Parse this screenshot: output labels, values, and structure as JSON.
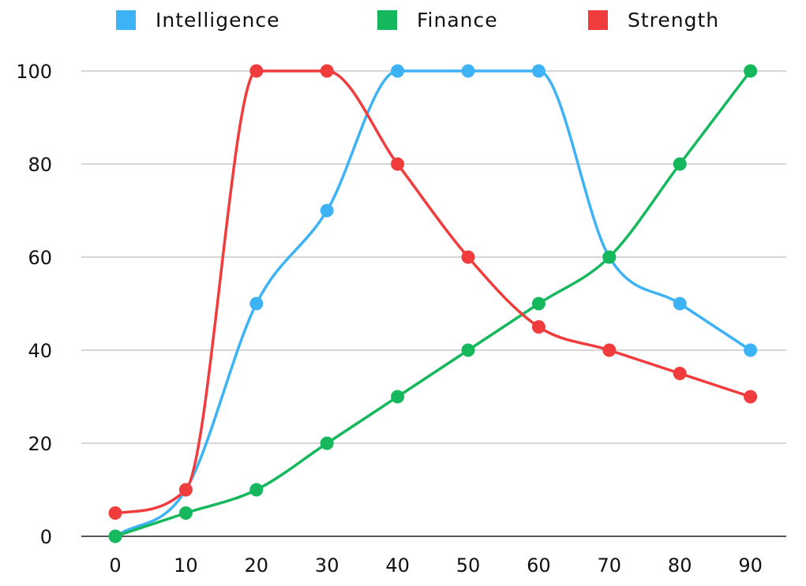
{
  "chart_data": {
    "type": "line",
    "title": "",
    "xlabel": "",
    "ylabel": "",
    "x": [
      0,
      10,
      20,
      30,
      40,
      50,
      60,
      70,
      80,
      90
    ],
    "x_tick_labels": [
      "0",
      "10",
      "20",
      "30",
      "40",
      "50",
      "60",
      "70",
      "80",
      "90"
    ],
    "y_tick_labels": [
      "0",
      "20",
      "40",
      "60",
      "80",
      "100"
    ],
    "ylim": [
      0,
      100
    ],
    "grid": true,
    "smooth": true,
    "legend_position": "top",
    "series": [
      {
        "name": "Intelligence",
        "color": "#3db3f5",
        "values": [
          0,
          10,
          50,
          70,
          100,
          100,
          100,
          60,
          50,
          40
        ]
      },
      {
        "name": "Finance",
        "color": "#16b85d",
        "values": [
          0,
          5,
          10,
          20,
          30,
          40,
          50,
          60,
          80,
          100
        ]
      },
      {
        "name": "Strength",
        "color": "#f03c3c",
        "values": [
          5,
          10,
          100,
          100,
          80,
          60,
          45,
          40,
          35,
          30
        ]
      }
    ]
  }
}
